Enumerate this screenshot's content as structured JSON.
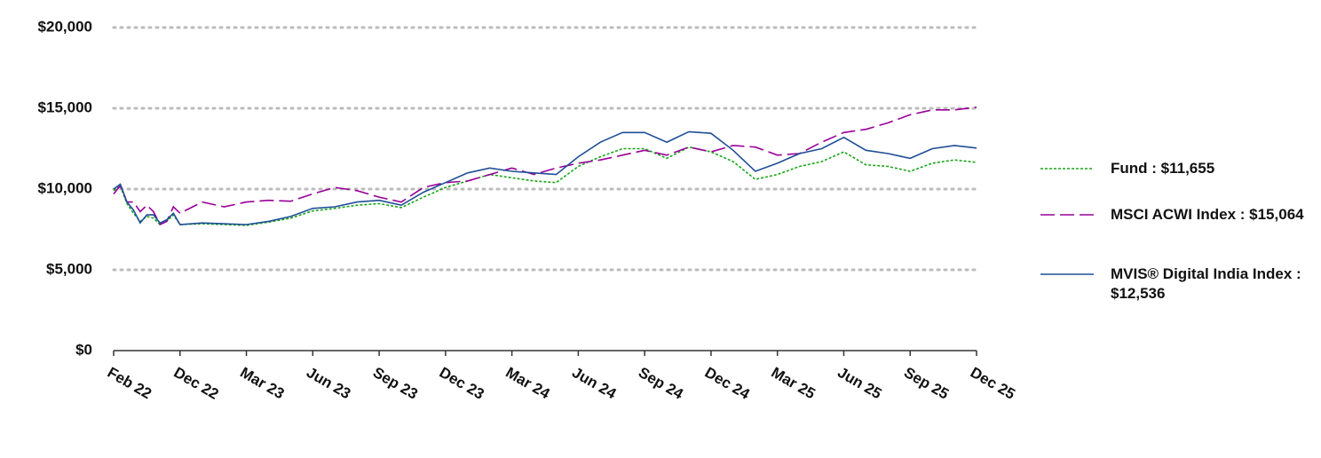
{
  "chart_data": {
    "type": "line",
    "categories": [
      "Feb 22",
      null,
      null,
      null,
      null,
      null,
      null,
      null,
      null,
      null,
      "Dec 22",
      null,
      null,
      "Mar 23",
      null,
      null,
      "Jun 23",
      null,
      null,
      "Sep 23",
      null,
      null,
      "Dec 23",
      null,
      null,
      "Mar 24",
      null,
      null,
      "Jun 24",
      null,
      null,
      "Sep 24",
      null,
      null,
      "Dec 24",
      null,
      null,
      "Mar 25",
      null,
      null,
      "Jun 25",
      null,
      null,
      "Sep 25",
      null,
      null,
      "Dec 25"
    ],
    "series": [
      {
        "name": "Fund : $11,655",
        "color": "#1aa51a",
        "style": "dotted",
        "values": [
          9900,
          10200,
          9100,
          8500,
          8000,
          8300,
          8200,
          7800,
          8000,
          8400,
          7800,
          7850,
          7800,
          7750,
          7950,
          8200,
          8650,
          8800,
          9000,
          9100,
          8850,
          9500,
          10100,
          10500,
          10900,
          10700,
          10500,
          10400,
          11400,
          12000,
          12500,
          12500,
          11900,
          12600,
          12300,
          11700,
          10600,
          10900,
          11400,
          11700,
          12300,
          11500,
          11400,
          11100,
          11600,
          11800,
          11655
        ]
      },
      {
        "name": "MSCI ACWI Index : $15,064",
        "color": "#990099",
        "style": "dashed",
        "values": [
          9700,
          10200,
          9200,
          9200,
          8600,
          9000,
          8600,
          7800,
          8000,
          8900,
          8500,
          9200,
          8900,
          9200,
          9300,
          9250,
          9700,
          10100,
          9900,
          9500,
          9200,
          10100,
          10400,
          10500,
          10900,
          11300,
          10900,
          11300,
          11600,
          11800,
          12100,
          12400,
          12100,
          12600,
          12300,
          12700,
          12600,
          12100,
          12200,
          12900,
          13500,
          13700,
          14100,
          14600,
          14900,
          14900,
          15064
        ]
      },
      {
        "name": "MVIS® Digital India Index : $12,536",
        "color": "#1f4e96",
        "style": "solid",
        "values": [
          10000,
          10300,
          9200,
          8700,
          7900,
          8400,
          8400,
          7900,
          8100,
          8500,
          7800,
          7900,
          7850,
          7800,
          8000,
          8300,
          8800,
          8900,
          9200,
          9300,
          9000,
          9800,
          10400,
          11000,
          11300,
          11100,
          11000,
          10900,
          12000,
          12900,
          13500,
          13500,
          12900,
          13550,
          13450,
          12400,
          11100,
          11600,
          12200,
          12500,
          13200,
          12400,
          12200,
          11900,
          12500,
          12700,
          12536
        ]
      }
    ],
    "ylim": [
      0,
      20000
    ],
    "yticks": [
      {
        "value": 0,
        "label": "$0"
      },
      {
        "value": 5000,
        "label": "$5,000"
      },
      {
        "value": 10000,
        "label": "$10,000"
      },
      {
        "value": 15000,
        "label": "$15,000"
      },
      {
        "value": 20000,
        "label": "$20,000"
      }
    ],
    "grid": true,
    "legend": "right"
  }
}
